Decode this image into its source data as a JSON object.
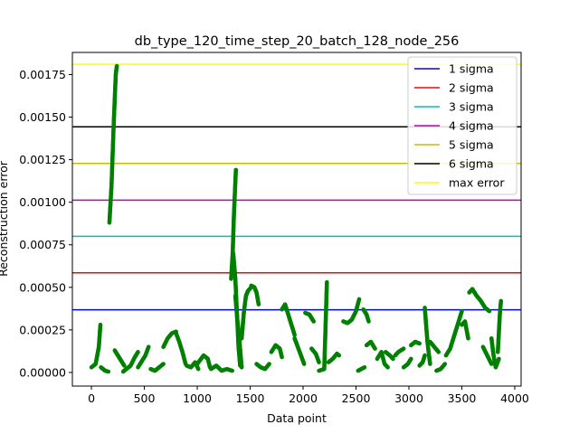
{
  "chart_data": {
    "type": "scatter",
    "title": "db_type_120_time_step_20_batch_128_node_256",
    "xlabel": "Data point",
    "ylabel": "Reconstruction error",
    "xlim": [
      -180,
      4060
    ],
    "ylim": [
      -8e-05,
      0.00188
    ],
    "xticks": [
      0,
      500,
      1000,
      1500,
      2000,
      2500,
      3000,
      3500,
      4000
    ],
    "xtick_labels": [
      "0",
      "500",
      "1000",
      "1500",
      "2000",
      "2500",
      "3000",
      "3500",
      "4000"
    ],
    "yticks": [
      0.0,
      0.00025,
      0.0005,
      0.00075,
      0.001,
      0.00125,
      0.0015,
      0.00175
    ],
    "ytick_labels": [
      "0.00000",
      "0.00025",
      "0.00050",
      "0.00075",
      "0.00100",
      "0.00125",
      "0.00150",
      "0.00175"
    ],
    "grid": false,
    "legend_position": "top-right",
    "point_color": "#008000",
    "thresholds": [
      {
        "name": "1 sigma",
        "value": 0.000368,
        "color": "#0000ff"
      },
      {
        "name": "2 sigma",
        "value": 0.000585,
        "color": "#ff0000"
      },
      {
        "name": "3 sigma",
        "value": 0.0008,
        "color": "#00bfbf"
      },
      {
        "name": "4 sigma",
        "value": 0.001012,
        "color": "#bf00bf"
      },
      {
        "name": "5 sigma",
        "value": 0.001228,
        "color": "#bfbf00"
      },
      {
        "name": "6 sigma",
        "value": 0.001443,
        "color": "#000000"
      },
      {
        "name": "max error",
        "value": 0.00181,
        "color": "#ffff00"
      }
    ],
    "segments": [
      [
        [
          0,
          3e-05
        ],
        [
          40,
          5e-05
        ],
        [
          70,
          0.00015
        ],
        [
          85,
          0.00028
        ]
      ],
      [
        [
          90,
          3e-05
        ],
        [
          110,
          2e-05
        ],
        [
          130,
          1e-05
        ],
        [
          160,
          5e-06
        ]
      ],
      [
        [
          170,
          0.00088
        ],
        [
          190,
          0.0011
        ],
        [
          210,
          0.00145
        ],
        [
          230,
          0.00175
        ],
        [
          240,
          0.0018
        ]
      ],
      [
        [
          220,
          0.00013
        ],
        [
          250,
          0.0001
        ],
        [
          280,
          7e-05
        ],
        [
          310,
          4e-05
        ]
      ],
      [
        [
          300,
          5e-06
        ],
        [
          330,
          2e-05
        ],
        [
          370,
          4e-05
        ],
        [
          410,
          9e-05
        ],
        [
          440,
          0.00012
        ]
      ],
      [
        [
          440,
          3e-05
        ],
        [
          470,
          6e-05
        ],
        [
          510,
          0.0001
        ],
        [
          540,
          0.00015
        ]
      ],
      [
        [
          560,
          2e-05
        ],
        [
          600,
          1e-05
        ],
        [
          640,
          3e-05
        ],
        [
          680,
          5e-05
        ]
      ],
      [
        [
          680,
          0.00015
        ],
        [
          720,
          0.0002
        ],
        [
          760,
          0.00023
        ],
        [
          800,
          0.00024
        ]
      ],
      [
        [
          800,
          0.00023
        ],
        [
          830,
          0.00018
        ],
        [
          860,
          0.00012
        ],
        [
          890,
          5e-05
        ]
      ],
      [
        [
          900,
          4e-05
        ],
        [
          940,
          3e-05
        ],
        [
          980,
          6e-05
        ],
        [
          1010,
          2e-05
        ]
      ],
      [
        [
          1000,
          5e-05
        ],
        [
          1060,
          0.0001
        ],
        [
          1100,
          8e-05
        ],
        [
          1120,
          3e-05
        ]
      ],
      [
        [
          1130,
          2e-05
        ],
        [
          1180,
          4e-05
        ],
        [
          1230,
          1e-05
        ],
        [
          1280,
          2e-05
        ],
        [
          1330,
          1e-05
        ]
      ],
      [
        [
          1320,
          0.00055
        ],
        [
          1335,
          0.0007
        ],
        [
          1345,
          0.0009
        ],
        [
          1355,
          0.00105
        ],
        [
          1365,
          0.00119
        ]
      ],
      [
        [
          1340,
          0.0007
        ],
        [
          1360,
          0.00055
        ],
        [
          1375,
          0.00035
        ],
        [
          1390,
          0.00015
        ],
        [
          1405,
          4e-05
        ]
      ],
      [
        [
          1360,
          0.00045
        ],
        [
          1380,
          0.0003
        ],
        [
          1395,
          0.00022
        ],
        [
          1410,
          0.0001
        ],
        [
          1420,
          3e-05
        ]
      ],
      [
        [
          1420,
          0.0002
        ],
        [
          1440,
          0.00035
        ],
        [
          1460,
          0.00045
        ],
        [
          1480,
          0.00048
        ],
        [
          1510,
          0.0005
        ]
      ],
      [
        [
          1510,
          0.00051
        ],
        [
          1540,
          0.0005
        ],
        [
          1560,
          0.00047
        ],
        [
          1580,
          0.0004
        ]
      ],
      [
        [
          1560,
          5e-05
        ],
        [
          1600,
          3e-05
        ],
        [
          1640,
          2e-05
        ],
        [
          1680,
          5e-05
        ]
      ],
      [
        [
          1700,
          0.00012
        ],
        [
          1740,
          0.00016
        ],
        [
          1780,
          0.00014
        ],
        [
          1800,
          9e-05
        ]
      ],
      [
        [
          1800,
          0.00037
        ],
        [
          1830,
          0.0004
        ],
        [
          1850,
          0.00036
        ],
        [
          1880,
          0.0003
        ],
        [
          1920,
          0.00022
        ]
      ],
      [
        [
          1920,
          0.0002
        ],
        [
          1950,
          0.00015
        ],
        [
          1980,
          0.0001
        ],
        [
          2010,
          5e-05
        ]
      ],
      [
        [
          2020,
          0.00035
        ],
        [
          2060,
          0.00034
        ],
        [
          2100,
          0.0003
        ]
      ],
      [
        [
          2080,
          0.00014
        ],
        [
          2120,
          0.00011
        ],
        [
          2150,
          6e-05
        ]
      ],
      [
        [
          2150,
          1e-05
        ],
        [
          2200,
          2e-05
        ],
        [
          2225,
          0.00053
        ]
      ],
      [
        [
          2240,
          6e-05
        ],
        [
          2280,
          8e-05
        ],
        [
          2320,
          0.00011
        ],
        [
          2340,
          0.0001
        ]
      ],
      [
        [
          2380,
          0.0003
        ],
        [
          2420,
          0.00029
        ],
        [
          2460,
          0.00031
        ],
        [
          2500,
          0.00036
        ],
        [
          2530,
          0.00043
        ]
      ],
      [
        [
          2520,
          1e-05
        ],
        [
          2550,
          2e-05
        ],
        [
          2580,
          3e-05
        ]
      ],
      [
        [
          2570,
          0.00037
        ],
        [
          2600,
          0.00034
        ],
        [
          2620,
          0.0003
        ]
      ],
      [
        [
          2600,
          0.00016
        ],
        [
          2640,
          0.00018
        ],
        [
          2680,
          0.00014
        ]
      ],
      [
        [
          2700,
          8e-05
        ],
        [
          2740,
          0.00012
        ],
        [
          2770,
          5e-05
        ],
        [
          2800,
          3e-05
        ]
      ],
      [
        [
          2780,
          0.00012
        ],
        [
          2820,
          0.0001
        ],
        [
          2850,
          8e-05
        ]
      ],
      [
        [
          2870,
          0.0001
        ],
        [
          2900,
          0.00012
        ],
        [
          2950,
          0.00014
        ]
      ],
      [
        [
          2950,
          3e-05
        ],
        [
          2990,
          5e-05
        ],
        [
          3020,
          8e-05
        ]
      ],
      [
        [
          3020,
          0.00016
        ],
        [
          3060,
          0.00018
        ],
        [
          3100,
          0.00017
        ]
      ],
      [
        [
          3100,
          4e-05
        ],
        [
          3130,
          6e-05
        ],
        [
          3150,
          0.0001
        ]
      ],
      [
        [
          3150,
          0.00038
        ],
        [
          3160,
          0.0003
        ],
        [
          3175,
          0.00018
        ],
        [
          3190,
          0.0001
        ],
        [
          3200,
          5e-05
        ]
      ],
      [
        [
          3200,
          0.00018
        ],
        [
          3240,
          0.00015
        ],
        [
          3280,
          0.00012
        ]
      ],
      [
        [
          3260,
          1e-05
        ],
        [
          3300,
          2e-05
        ],
        [
          3340,
          5e-05
        ]
      ],
      [
        [
          3350,
          0.0001
        ],
        [
          3390,
          0.00014
        ],
        [
          3430,
          0.00022
        ],
        [
          3470,
          0.0003
        ],
        [
          3500,
          0.00036
        ]
      ],
      [
        [
          3500,
          0.00028
        ],
        [
          3530,
          0.0003
        ],
        [
          3560,
          0.0002
        ]
      ],
      [
        [
          3570,
          0.00047
        ],
        [
          3600,
          0.00049
        ],
        [
          3640,
          0.00045
        ],
        [
          3680,
          0.00042
        ],
        [
          3720,
          0.00038
        ],
        [
          3760,
          0.00036
        ]
      ],
      [
        [
          3700,
          0.00015
        ],
        [
          3740,
          0.0001
        ],
        [
          3780,
          5e-05
        ]
      ],
      [
        [
          3780,
          0.0002
        ],
        [
          3800,
          0.0001
        ],
        [
          3820,
          3e-05
        ],
        [
          3850,
          8e-05
        ]
      ],
      [
        [
          3840,
          0.00012
        ],
        [
          3860,
          0.00035
        ],
        [
          3870,
          0.00042
        ]
      ]
    ]
  }
}
